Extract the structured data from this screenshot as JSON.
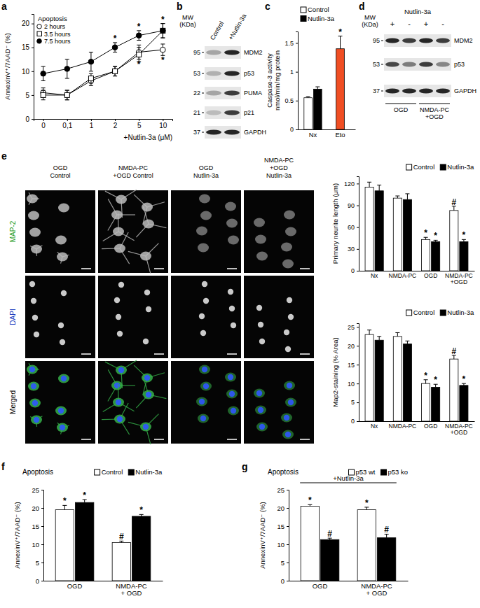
{
  "chart_data": [
    {
      "panel": "a",
      "type": "line",
      "title": "Apoptosis",
      "x_label": "+Nutlin-3a (μM)",
      "y_label": "AnnexinV⁺/7AAD⁻ (%)",
      "categories": [
        "0",
        "0,1",
        "1",
        "2",
        "5",
        "10"
      ],
      "ylim": [
        0,
        22
      ],
      "yticks": [
        0,
        5,
        10,
        15,
        20
      ],
      "legend": "top-left",
      "series": [
        {
          "name": "2 hours",
          "color": "#ffffff",
          "marker": "circle",
          "values": [
            5.5,
            5,
            8,
            10,
            14,
            14.5
          ],
          "errors": [
            1,
            1,
            1,
            1,
            1.5,
            1.2
          ],
          "annotations": [
            null,
            null,
            null,
            null,
            "*",
            "*"
          ]
        },
        {
          "name": "3.5 hours",
          "color": "#ffffff",
          "marker": "square",
          "values": [
            5,
            5,
            8.5,
            10,
            13.5,
            18.5
          ],
          "errors": [
            1,
            1,
            1,
            1,
            1.5,
            1.5
          ],
          "annotations": [
            null,
            null,
            null,
            null,
            null,
            null
          ]
        },
        {
          "name": "7.5 hours",
          "color": "#000000",
          "marker": "circle",
          "values": [
            9.5,
            10.5,
            12,
            15,
            17.5,
            18.5
          ],
          "errors": [
            1.5,
            2,
            2,
            1,
            1,
            1.5
          ],
          "annotations": [
            null,
            null,
            null,
            "*",
            "*",
            "*"
          ]
        }
      ]
    },
    {
      "panel": "c",
      "type": "bar",
      "y_label": [
        "Caspase-3 activity",
        "nmol/min/mg protein"
      ],
      "categories": [
        "Nx",
        "Eto"
      ],
      "ylim": [
        0,
        1.7
      ],
      "yticks": [
        0,
        0.5,
        1,
        1.5
      ],
      "legend": "top-left",
      "series": [
        {
          "name": "Control",
          "color": "#ffffff",
          "values": [
            0.55,
            null
          ],
          "errors": [
            0.02,
            null
          ],
          "annotations": [
            null,
            null
          ]
        },
        {
          "name": "Nutlin-3a",
          "color": "#000000",
          "values": [
            0.7,
            null
          ],
          "errors": [
            0.04,
            null
          ],
          "annotations": [
            null,
            null
          ]
        },
        {
          "color": "#f04e23",
          "values": [
            null,
            1.4
          ],
          "errors": [
            null,
            0.22
          ],
          "annotations": [
            null,
            "*"
          ]
        }
      ]
    },
    {
      "type": "bar",
      "y_label": "Primary neurite length (μm)",
      "categories": [
        "Nx",
        "NMDA-PC",
        "OGD",
        "NMDA-PC +OGD"
      ],
      "ylim": [
        0,
        130
      ],
      "yticks": [
        0,
        30,
        60,
        90,
        120
      ],
      "legend": "top-right",
      "series": [
        {
          "name": "Control",
          "color": "#ffffff",
          "values": [
            115,
            100,
            43,
            83
          ],
          "errors": [
            7,
            3,
            3,
            6
          ],
          "annotations": [
            null,
            null,
            "*",
            "#"
          ]
        },
        {
          "name": "Nutlin-3a",
          "color": "#000000",
          "values": [
            110,
            98,
            40,
            40
          ],
          "errors": [
            8,
            8,
            2,
            3
          ],
          "annotations": [
            null,
            null,
            "*",
            "*"
          ]
        }
      ]
    },
    {
      "type": "bar",
      "y_label": "Map2-staining (% Area)",
      "categories": [
        "Nx",
        "NMDA-PC",
        "OGD",
        "NMDA-PC +OGD"
      ],
      "ylim": [
        0,
        26
      ],
      "yticks": [
        0,
        5,
        10,
        15,
        20,
        25
      ],
      "legend": "top-right",
      "series": [
        {
          "name": "Control",
          "color": "#ffffff",
          "values": [
            23,
            22.5,
            10,
            16.5
          ],
          "errors": [
            1.2,
            1,
            1,
            1
          ],
          "annotations": [
            null,
            null,
            "*",
            "#"
          ]
        },
        {
          "name": "Nutlin-3a",
          "color": "#000000",
          "values": [
            21.5,
            20.5,
            9,
            9.5
          ],
          "errors": [
            1,
            0.8,
            0.8,
            0.5
          ],
          "annotations": [
            null,
            null,
            "*",
            "*"
          ]
        }
      ]
    },
    {
      "panel": "f",
      "type": "bar",
      "title": "Apoptosis",
      "y_label": "AnnexinV⁺/7AAD⁻ (%)",
      "categories": [
        "OGD",
        "NMDA-PC + OGD"
      ],
      "ylim": [
        0,
        25
      ],
      "yticks": [
        0,
        5,
        10,
        15,
        20,
        25
      ],
      "legend": "top-right",
      "series": [
        {
          "name": "Control",
          "color": "#ffffff",
          "values": [
            19.5,
            10.5
          ],
          "errors": [
            1.2,
            0.4
          ],
          "annotations": [
            "*",
            "#"
          ]
        },
        {
          "name": "Nutlin-3a",
          "color": "#000000",
          "values": [
            21.5,
            17.7
          ],
          "errors": [
            0.8,
            0.5
          ],
          "annotations": [
            "*",
            "*"
          ]
        }
      ]
    },
    {
      "panel": "g",
      "type": "bar",
      "title": "Apoptosis",
      "group_label": "+Nutlin-3a",
      "y_label": "AnnexinV⁺/7AAD⁻ (%)",
      "categories": [
        "OGD",
        "NMDA-PC + OGD"
      ],
      "ylim": [
        0,
        25
      ],
      "yticks": [
        0,
        5,
        10,
        15,
        20,
        25
      ],
      "legend": "top-right",
      "series": [
        {
          "name": "p53 wt",
          "color": "#ffffff",
          "values": [
            20.5,
            19.5
          ],
          "errors": [
            0.4,
            0.7
          ],
          "annotations": [
            "*",
            "*"
          ]
        },
        {
          "name": "p53 ko",
          "color": "#000000",
          "values": [
            11.3,
            11.8
          ],
          "errors": [
            0.4,
            1
          ],
          "annotations": [
            "#",
            "#"
          ]
        }
      ]
    }
  ],
  "blots": [
    {
      "panel": "b",
      "mw_label": [
        "MW",
        "(KDa)"
      ],
      "lanes": [
        "Control",
        "+Nutlin-3a"
      ],
      "rows": [
        {
          "mw": 95,
          "protein": "MDM2"
        },
        {
          "mw": 53,
          "protein": "p53"
        },
        {
          "mw": 22,
          "protein": "PUMA"
        },
        {
          "mw": 21,
          "protein": "p21"
        },
        {
          "mw": 37,
          "protein": "GAPDH"
        }
      ]
    },
    {
      "panel": "d",
      "mw_label": [
        "MW",
        "(KDa)"
      ],
      "header": "Nutlin-3a",
      "lanes": [
        "+",
        "-",
        "+",
        "-"
      ],
      "groups": [
        "OGD",
        "NMDA-PC +OGD"
      ],
      "rows": [
        {
          "mw": 95,
          "protein": "MDM2"
        },
        {
          "mw": 53,
          "protein": "p53"
        },
        {
          "mw": 37,
          "protein": "GAPDH"
        }
      ]
    }
  ],
  "micrographs": {
    "panel": "e",
    "columns": [
      [
        "OGD",
        "Control"
      ],
      [
        "NMDA-PC",
        "+OGD  Control"
      ],
      [
        "OGD",
        "Nutlin-3a"
      ],
      [
        "NMDA-PC",
        "+OGD",
        "Nutlin-3a"
      ]
    ],
    "rows": [
      "MAP-2",
      "DAPI",
      "Merged"
    ]
  }
}
